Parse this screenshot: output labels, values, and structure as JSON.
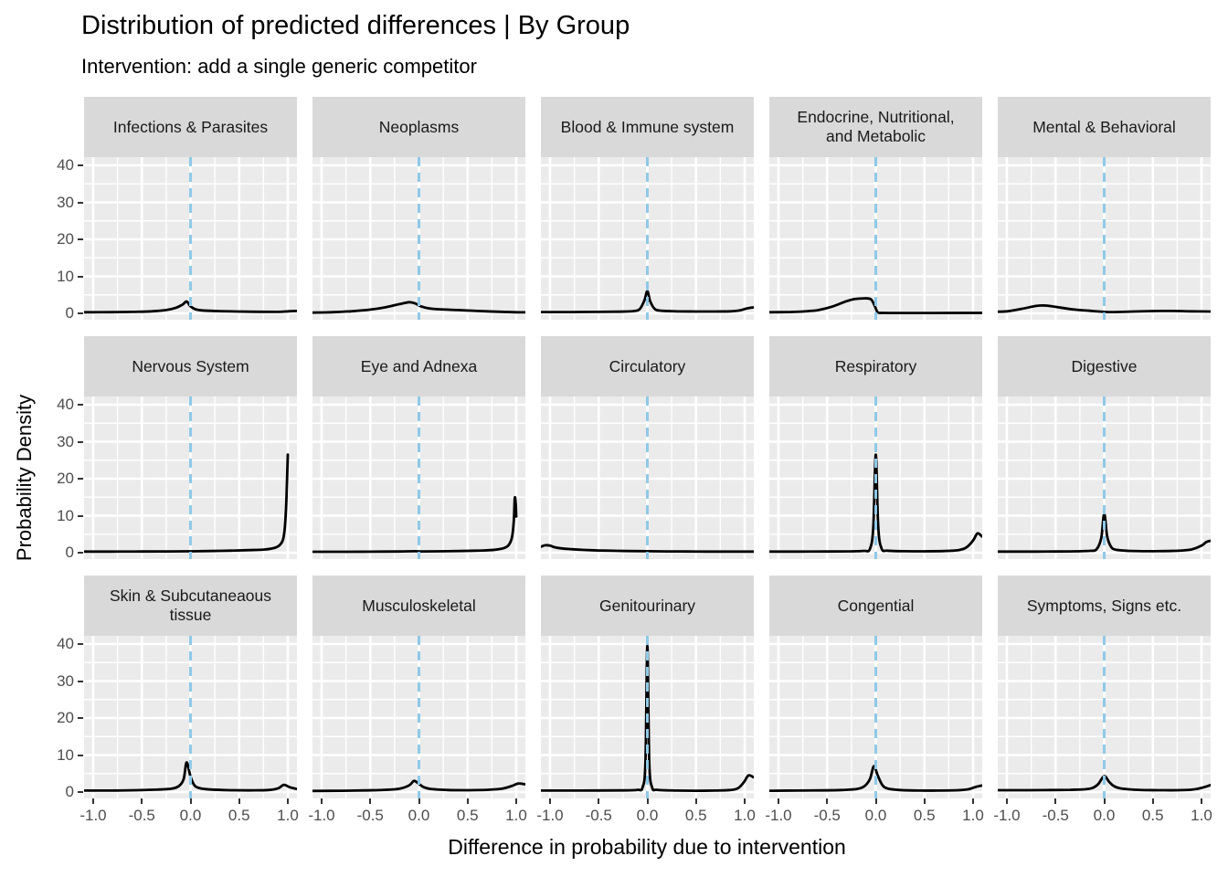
{
  "plot": {
    "title": "Distribution of predicted differences | By Group",
    "subtitle": "Intervention: add a single generic competitor",
    "xlabel": "Difference in probability due to intervention",
    "ylabel": "Probability Density"
  },
  "axes": {
    "x_tick_labels": [
      "-1.0",
      "-0.5",
      "0.0",
      "0.5",
      "1.0"
    ],
    "y_tick_labels": [
      "40",
      "30",
      "20",
      "10",
      "0"
    ]
  },
  "colors": {
    "figure_bg": "#FFFFFF",
    "panel_bg": "#EBEBEB",
    "strip_bg": "#D9D9D9",
    "gridline": "#FFFFFF",
    "curve": "#000000",
    "vline": "#8FC9E8",
    "tick_mark": "#333333",
    "tick_text": "#4D4D4D",
    "strip_text": "#1A1A1A"
  },
  "chart_data": {
    "type": "line",
    "subtype": "faceted-density",
    "title": "Distribution of predicted differences | By Group",
    "subtitle": "Intervention: add a single generic competitor",
    "xlabel": "Difference in probability due to intervention",
    "ylabel": "Probability Density",
    "facet_layout": {
      "rows": 3,
      "cols": 5
    },
    "x_tick_values": [
      -1.0,
      -0.5,
      0.0,
      0.5,
      1.0
    ],
    "y_tick_values": [
      40,
      30,
      20,
      10,
      0
    ],
    "x_minor_values": [
      -0.75,
      -0.25,
      0.25,
      0.75
    ],
    "y_minor_values": [
      5,
      15,
      25,
      35
    ],
    "xlim": [
      -1.094,
      1.094
    ],
    "ylim": [
      -2,
      42
    ],
    "reference_line": {
      "x": 0,
      "style": "dashed",
      "color": "#8FC9E8"
    },
    "grid": true,
    "legend": "none",
    "facets": [
      {
        "name": "Infections & Parasites",
        "points": [
          [
            -1.09,
            0.3
          ],
          [
            -0.8,
            0.32
          ],
          [
            -0.6,
            0.4
          ],
          [
            -0.4,
            0.55
          ],
          [
            -0.25,
            0.9
          ],
          [
            -0.15,
            1.5
          ],
          [
            -0.08,
            2.4
          ],
          [
            -0.04,
            3.2
          ],
          [
            0,
            1.9
          ],
          [
            0.05,
            1.1
          ],
          [
            0.12,
            0.8
          ],
          [
            0.3,
            0.6
          ],
          [
            0.6,
            0.45
          ],
          [
            0.9,
            0.4
          ],
          [
            1.0,
            0.55
          ],
          [
            1.09,
            0.65
          ]
        ]
      },
      {
        "name": "Neoplasms",
        "points": [
          [
            -1.09,
            0.2
          ],
          [
            -0.9,
            0.3
          ],
          [
            -0.7,
            0.55
          ],
          [
            -0.5,
            1.0
          ],
          [
            -0.35,
            1.6
          ],
          [
            -0.2,
            2.5
          ],
          [
            -0.1,
            3.0
          ],
          [
            -0.04,
            2.7
          ],
          [
            0.02,
            1.9
          ],
          [
            0.1,
            1.35
          ],
          [
            0.2,
            1.1
          ],
          [
            0.4,
            0.9
          ],
          [
            0.6,
            0.65
          ],
          [
            0.8,
            0.45
          ],
          [
            1.0,
            0.3
          ],
          [
            1.09,
            0.28
          ]
        ]
      },
      {
        "name": "Blood & Immune system",
        "points": [
          [
            -1.09,
            0.35
          ],
          [
            -0.8,
            0.35
          ],
          [
            -0.5,
            0.4
          ],
          [
            -0.3,
            0.45
          ],
          [
            -0.15,
            0.6
          ],
          [
            -0.08,
            1.1
          ],
          [
            -0.03,
            3.5
          ],
          [
            0,
            6.0
          ],
          [
            0.03,
            3.2
          ],
          [
            0.08,
            1.1
          ],
          [
            0.15,
            0.7
          ],
          [
            0.3,
            0.55
          ],
          [
            0.5,
            0.5
          ],
          [
            0.7,
            0.5
          ],
          [
            0.85,
            0.55
          ],
          [
            0.95,
            0.8
          ],
          [
            1.02,
            1.3
          ],
          [
            1.09,
            1.6
          ]
        ]
      },
      {
        "name": "Endocrine, Nutritional,\nand Metabolic",
        "points": [
          [
            -1.09,
            0.3
          ],
          [
            -0.9,
            0.35
          ],
          [
            -0.75,
            0.5
          ],
          [
            -0.6,
            0.85
          ],
          [
            -0.45,
            1.8
          ],
          [
            -0.32,
            3.1
          ],
          [
            -0.22,
            3.85
          ],
          [
            -0.12,
            4.05
          ],
          [
            -0.05,
            3.8
          ],
          [
            -0.01,
            2.0
          ],
          [
            0.02,
            0.3
          ],
          [
            0.08,
            0.12
          ],
          [
            0.3,
            0.1
          ],
          [
            0.6,
            0.1
          ],
          [
            1.09,
            0.12
          ]
        ]
      },
      {
        "name": "Mental & Behavioral",
        "points": [
          [
            -1.09,
            0.45
          ],
          [
            -1.0,
            0.55
          ],
          [
            -0.85,
            1.2
          ],
          [
            -0.7,
            2.0
          ],
          [
            -0.6,
            2.1
          ],
          [
            -0.45,
            1.55
          ],
          [
            -0.3,
            1.0
          ],
          [
            -0.15,
            0.7
          ],
          [
            0,
            0.4
          ],
          [
            0.1,
            0.35
          ],
          [
            0.3,
            0.5
          ],
          [
            0.5,
            0.62
          ],
          [
            0.7,
            0.65
          ],
          [
            0.9,
            0.55
          ],
          [
            1.09,
            0.5
          ]
        ]
      },
      {
        "name": "Nervous System",
        "points": [
          [
            -1.09,
            0.3
          ],
          [
            -0.8,
            0.3
          ],
          [
            -0.5,
            0.32
          ],
          [
            -0.2,
            0.35
          ],
          [
            0,
            0.38
          ],
          [
            0.2,
            0.45
          ],
          [
            0.4,
            0.55
          ],
          [
            0.6,
            0.68
          ],
          [
            0.75,
            0.85
          ],
          [
            0.85,
            1.2
          ],
          [
            0.91,
            1.9
          ],
          [
            0.95,
            3.5
          ],
          [
            0.97,
            7
          ],
          [
            0.985,
            14
          ],
          [
            1.0,
            26.5
          ]
        ]
      },
      {
        "name": "Eye and Adnexa",
        "points": [
          [
            -1.09,
            0.25
          ],
          [
            -0.8,
            0.25
          ],
          [
            -0.5,
            0.28
          ],
          [
            -0.2,
            0.33
          ],
          [
            -0.05,
            0.4
          ],
          [
            0.05,
            0.35
          ],
          [
            0.3,
            0.4
          ],
          [
            0.5,
            0.5
          ],
          [
            0.65,
            0.6
          ],
          [
            0.78,
            0.8
          ],
          [
            0.87,
            1.2
          ],
          [
            0.92,
            2.0
          ],
          [
            0.955,
            4.0
          ],
          [
            0.975,
            8.5
          ],
          [
            0.985,
            14.8
          ],
          [
            0.995,
            13.0
          ],
          [
            1.0,
            9.8
          ]
        ]
      },
      {
        "name": "Circulatory",
        "points": [
          [
            -1.09,
            1.65
          ],
          [
            -1.05,
            2.0
          ],
          [
            -1.0,
            1.9
          ],
          [
            -0.95,
            1.45
          ],
          [
            -0.88,
            1.15
          ],
          [
            -0.78,
            0.95
          ],
          [
            -0.65,
            0.75
          ],
          [
            -0.5,
            0.6
          ],
          [
            -0.35,
            0.52
          ],
          [
            -0.2,
            0.45
          ],
          [
            0,
            0.4
          ],
          [
            0.2,
            0.35
          ],
          [
            0.4,
            0.32
          ],
          [
            0.6,
            0.3
          ],
          [
            0.8,
            0.3
          ],
          [
            1.09,
            0.3
          ]
        ]
      },
      {
        "name": "Respiratory",
        "points": [
          [
            -1.09,
            0.3
          ],
          [
            -0.8,
            0.3
          ],
          [
            -0.5,
            0.33
          ],
          [
            -0.25,
            0.38
          ],
          [
            -0.12,
            0.5
          ],
          [
            -0.06,
            1.0
          ],
          [
            -0.025,
            7
          ],
          [
            0,
            26.5
          ],
          [
            0.025,
            7
          ],
          [
            0.06,
            1.1
          ],
          [
            0.12,
            0.55
          ],
          [
            0.3,
            0.4
          ],
          [
            0.5,
            0.38
          ],
          [
            0.7,
            0.45
          ],
          [
            0.85,
            0.7
          ],
          [
            0.93,
            1.4
          ],
          [
            1.0,
            3.3
          ],
          [
            1.045,
            5.2
          ],
          [
            1.09,
            4.4
          ]
        ]
      },
      {
        "name": "Digestive",
        "points": [
          [
            -1.09,
            0.3
          ],
          [
            -0.8,
            0.3
          ],
          [
            -0.5,
            0.32
          ],
          [
            -0.3,
            0.38
          ],
          [
            -0.15,
            0.5
          ],
          [
            -0.08,
            0.9
          ],
          [
            -0.03,
            4.0
          ],
          [
            0,
            10.5
          ],
          [
            0.03,
            4.5
          ],
          [
            0.07,
            1.6
          ],
          [
            0.12,
            0.8
          ],
          [
            0.25,
            0.5
          ],
          [
            0.45,
            0.4
          ],
          [
            0.65,
            0.45
          ],
          [
            0.8,
            0.6
          ],
          [
            0.9,
            0.9
          ],
          [
            1.0,
            1.9
          ],
          [
            1.05,
            2.9
          ],
          [
            1.09,
            3.2
          ]
        ]
      },
      {
        "name": "Skin & Subcutaneaous\ntissue",
        "points": [
          [
            -1.09,
            0.4
          ],
          [
            -0.8,
            0.4
          ],
          [
            -0.55,
            0.5
          ],
          [
            -0.35,
            0.65
          ],
          [
            -0.2,
            0.9
          ],
          [
            -0.12,
            1.6
          ],
          [
            -0.07,
            3.5
          ],
          [
            -0.04,
            8.0
          ],
          [
            0,
            4.2
          ],
          [
            0.04,
            1.8
          ],
          [
            0.1,
            1.0
          ],
          [
            0.2,
            0.7
          ],
          [
            0.4,
            0.5
          ],
          [
            0.6,
            0.45
          ],
          [
            0.8,
            0.55
          ],
          [
            0.9,
            1.0
          ],
          [
            0.96,
            1.95
          ],
          [
            1.02,
            1.3
          ],
          [
            1.09,
            0.85
          ]
        ]
      },
      {
        "name": "Musculoskeletal",
        "points": [
          [
            -1.09,
            0.3
          ],
          [
            -0.8,
            0.35
          ],
          [
            -0.55,
            0.45
          ],
          [
            -0.35,
            0.6
          ],
          [
            -0.2,
            0.9
          ],
          [
            -0.1,
            1.8
          ],
          [
            -0.05,
            3.0
          ],
          [
            0,
            2.2
          ],
          [
            0.05,
            1.3
          ],
          [
            0.12,
            0.85
          ],
          [
            0.3,
            0.55
          ],
          [
            0.5,
            0.5
          ],
          [
            0.7,
            0.6
          ],
          [
            0.85,
            0.9
          ],
          [
            0.95,
            1.6
          ],
          [
            1.02,
            2.3
          ],
          [
            1.09,
            2.1
          ]
        ]
      },
      {
        "name": "Genitourinary",
        "points": [
          [
            -1.09,
            0.4
          ],
          [
            -0.8,
            0.4
          ],
          [
            -0.5,
            0.42
          ],
          [
            -0.25,
            0.45
          ],
          [
            -0.1,
            0.6
          ],
          [
            -0.05,
            1.2
          ],
          [
            -0.02,
            8
          ],
          [
            0,
            39.5
          ],
          [
            0.02,
            8
          ],
          [
            0.05,
            1.2
          ],
          [
            0.1,
            0.6
          ],
          [
            0.3,
            0.4
          ],
          [
            0.5,
            0.35
          ],
          [
            0.7,
            0.4
          ],
          [
            0.85,
            0.55
          ],
          [
            0.93,
            1.0
          ],
          [
            0.99,
            2.6
          ],
          [
            1.04,
            4.5
          ],
          [
            1.09,
            4.0
          ]
        ]
      },
      {
        "name": "Congential",
        "points": [
          [
            -1.09,
            0.35
          ],
          [
            -0.8,
            0.4
          ],
          [
            -0.55,
            0.45
          ],
          [
            -0.35,
            0.55
          ],
          [
            -0.2,
            0.8
          ],
          [
            -0.12,
            1.5
          ],
          [
            -0.06,
            3.5
          ],
          [
            -0.02,
            7.0
          ],
          [
            0.02,
            4.5
          ],
          [
            0.07,
            1.8
          ],
          [
            0.13,
            0.9
          ],
          [
            0.25,
            0.55
          ],
          [
            0.45,
            0.4
          ],
          [
            0.65,
            0.4
          ],
          [
            0.85,
            0.5
          ],
          [
            0.95,
            0.75
          ],
          [
            1.03,
            1.4
          ],
          [
            1.09,
            1.75
          ]
        ]
      },
      {
        "name": "Symptoms, Signs etc.",
        "points": [
          [
            -1.09,
            0.5
          ],
          [
            -0.8,
            0.5
          ],
          [
            -0.55,
            0.55
          ],
          [
            -0.35,
            0.6
          ],
          [
            -0.2,
            0.75
          ],
          [
            -0.12,
            1.1
          ],
          [
            -0.06,
            2.2
          ],
          [
            0,
            4.3
          ],
          [
            0.05,
            2.8
          ],
          [
            0.1,
            1.6
          ],
          [
            0.18,
            0.95
          ],
          [
            0.35,
            0.6
          ],
          [
            0.55,
            0.5
          ],
          [
            0.75,
            0.5
          ],
          [
            0.9,
            0.65
          ],
          [
            1.0,
            1.1
          ],
          [
            1.09,
            1.85
          ]
        ]
      }
    ]
  }
}
